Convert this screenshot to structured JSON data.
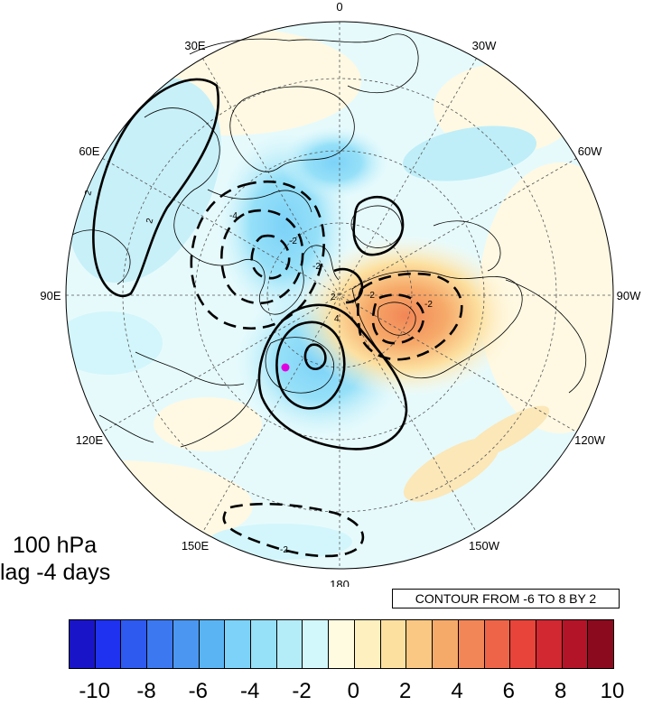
{
  "map": {
    "longitude_labels": [
      {
        "text": "0",
        "angle": 0
      },
      {
        "text": "30W",
        "angle": 30
      },
      {
        "text": "60W",
        "angle": 60
      },
      {
        "text": "90W",
        "angle": 90
      },
      {
        "text": "120W",
        "angle": 120
      },
      {
        "text": "150W",
        "angle": 150
      },
      {
        "text": "180",
        "angle": 180
      },
      {
        "text": "150E",
        "angle": 210
      },
      {
        "text": "120E",
        "angle": 240
      },
      {
        "text": "90E",
        "angle": 270
      },
      {
        "text": "60E",
        "angle": 300
      },
      {
        "text": "30E",
        "angle": 330
      }
    ],
    "contour_labels": [
      "2",
      "2",
      "-4",
      "-2",
      "-2",
      "4",
      "2",
      "-2",
      "-2",
      "-2"
    ],
    "colors": {
      "positive_anomaly": "#f0b07a",
      "negative_anomaly": "#bfeef8",
      "marker": "#e000e0"
    }
  },
  "info": {
    "level": "100 hPa",
    "lag": "lag -4 days"
  },
  "contour_note": "CONTOUR FROM -6 TO 8 BY 2",
  "colorbar": {
    "colors": [
      "#1a14c8",
      "#1e32f0",
      "#2e5af0",
      "#3c78f0",
      "#4a96f0",
      "#5ab4f4",
      "#7cd2f8",
      "#96e0f8",
      "#b4ecf8",
      "#d2f8fc",
      "#fffbe0",
      "#fff0c0",
      "#fce0a0",
      "#fac882",
      "#f6aa6a",
      "#f28656",
      "#ee6448",
      "#e8443a",
      "#d22832",
      "#b41428",
      "#8c0a1e"
    ],
    "labels": [
      "-10",
      "-8",
      "-6",
      "-4",
      "-2",
      "0",
      "2",
      "4",
      "6",
      "8",
      "10"
    ]
  }
}
